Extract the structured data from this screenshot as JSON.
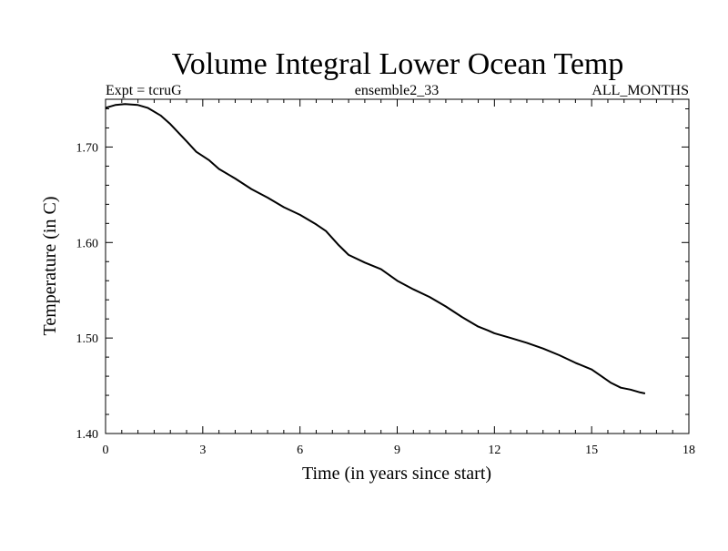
{
  "chart_data": {
    "type": "line",
    "title": "Volume Integral Lower Ocean Temp",
    "subtitle_left": "Expt = tcruG",
    "subtitle_center": "ensemble2_33",
    "subtitle_right": "ALL_MONTHS",
    "xlabel": "Time (in years since start)",
    "ylabel": "Temperature (in C)",
    "xlim": [
      0,
      18
    ],
    "ylim": [
      1.4,
      1.75
    ],
    "x_ticks": [
      0,
      3,
      6,
      9,
      12,
      15,
      18
    ],
    "x_tick_labels": [
      "0",
      "3",
      "6",
      "9",
      "12",
      "15",
      "18"
    ],
    "y_ticks": [
      1.4,
      1.5,
      1.6,
      1.7
    ],
    "y_tick_labels": [
      "1.40",
      "1.50",
      "1.60",
      "1.70"
    ],
    "x_minor_step": 0.5,
    "y_minor_step": 0.02,
    "grid": false,
    "series": [
      {
        "color": "#000000",
        "x": [
          0,
          0.3,
          0.6,
          1.0,
          1.3,
          1.7,
          2.0,
          2.5,
          2.8,
          3.2,
          3.5,
          4.0,
          4.5,
          5.0,
          5.5,
          6.0,
          6.5,
          6.8,
          7.2,
          7.5,
          8.0,
          8.5,
          9.0,
          9.5,
          10.0,
          10.5,
          11.0,
          11.5,
          11.8,
          12.0,
          12.5,
          13.0,
          13.5,
          14.0,
          14.5,
          15.0,
          15.3,
          15.6,
          15.9,
          16.2,
          16.5,
          16.65
        ],
        "values": [
          1.741,
          1.744,
          1.745,
          1.744,
          1.741,
          1.733,
          1.724,
          1.706,
          1.695,
          1.686,
          1.677,
          1.667,
          1.656,
          1.647,
          1.637,
          1.629,
          1.619,
          1.612,
          1.597,
          1.587,
          1.579,
          1.572,
          1.56,
          1.551,
          1.543,
          1.533,
          1.522,
          1.512,
          1.508,
          1.505,
          1.5,
          1.495,
          1.489,
          1.482,
          1.474,
          1.467,
          1.46,
          1.453,
          1.448,
          1.446,
          1.443,
          1.442
        ]
      }
    ]
  }
}
